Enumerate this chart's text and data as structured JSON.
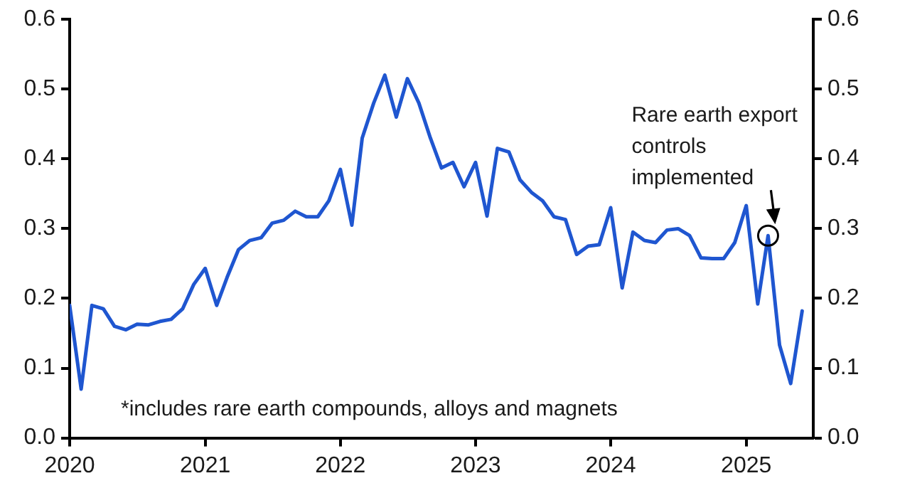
{
  "chart_data": {
    "type": "line",
    "x": [
      "2020-01",
      "2020-02",
      "2020-03",
      "2020-04",
      "2020-05",
      "2020-06",
      "2020-07",
      "2020-08",
      "2020-09",
      "2020-10",
      "2020-11",
      "2020-12",
      "2021-01",
      "2021-02",
      "2021-03",
      "2021-04",
      "2021-05",
      "2021-06",
      "2021-07",
      "2021-08",
      "2021-09",
      "2021-10",
      "2021-11",
      "2021-12",
      "2022-01",
      "2022-02",
      "2022-03",
      "2022-04",
      "2022-05",
      "2022-06",
      "2022-07",
      "2022-08",
      "2022-09",
      "2022-10",
      "2022-11",
      "2022-12",
      "2023-01",
      "2023-02",
      "2023-03",
      "2023-04",
      "2023-05",
      "2023-06",
      "2023-07",
      "2023-08",
      "2023-09",
      "2023-10",
      "2023-11",
      "2023-12",
      "2024-01",
      "2024-02",
      "2024-03",
      "2024-04",
      "2024-05",
      "2024-06",
      "2024-07",
      "2024-08",
      "2024-09",
      "2024-10",
      "2024-11",
      "2024-12",
      "2025-01",
      "2025-02",
      "2025-03",
      "2025-04",
      "2025-05",
      "2025-06"
    ],
    "series": [
      {
        "color": "#1f56d0",
        "values": [
          0.19,
          0.07,
          0.19,
          0.185,
          0.16,
          0.155,
          0.163,
          0.162,
          0.167,
          0.17,
          0.185,
          0.22,
          0.243,
          0.19,
          0.23,
          0.27,
          0.283,
          0.287,
          0.308,
          0.312,
          0.325,
          0.317,
          0.317,
          0.34,
          0.385,
          0.305,
          0.43,
          0.48,
          0.52,
          0.46,
          0.515,
          0.48,
          0.43,
          0.387,
          0.395,
          0.36,
          0.395,
          0.318,
          0.415,
          0.41,
          0.37,
          0.352,
          0.34,
          0.317,
          0.313,
          0.263,
          0.275,
          0.277,
          0.33,
          0.215,
          0.295,
          0.283,
          0.28,
          0.298,
          0.3,
          0.29,
          0.258,
          0.257,
          0.257,
          0.28,
          0.333,
          0.192,
          0.29,
          0.133,
          0.078,
          0.182
        ]
      }
    ],
    "xlim": [
      "2020-01",
      "2025-07"
    ],
    "xticks": [
      "2020",
      "2021",
      "2022",
      "2023",
      "2024",
      "2025"
    ],
    "ylim": [
      0,
      0.6
    ],
    "yticks": [
      {
        "value": 0,
        "label": "0.0"
      },
      {
        "value": 0.1,
        "label": "0.1"
      },
      {
        "value": 0.2,
        "label": "0.2"
      },
      {
        "value": 0.3,
        "label": "0.3"
      },
      {
        "value": 0.4,
        "label": "0.4"
      },
      {
        "value": 0.5,
        "label": "0.5"
      },
      {
        "value": 0.6,
        "label": "0.6"
      }
    ],
    "y2lim": [
      0,
      0.6
    ],
    "y2ticks": [
      {
        "value": 0,
        "label": "0.0"
      },
      {
        "value": 0.1,
        "label": "0.1"
      },
      {
        "value": 0.2,
        "label": "0.2"
      },
      {
        "value": 0.3,
        "label": "0.3"
      },
      {
        "value": 0.4,
        "label": "0.4"
      },
      {
        "value": 0.5,
        "label": "0.5"
      },
      {
        "value": 0.6,
        "label": "0.6"
      }
    ],
    "annotations": [
      {
        "text": "Rare earth export controls implemented",
        "x": "2025-03",
        "y": 0.29
      },
      "*includes rare earth compounds, alloys and magnets"
    ],
    "grid": false,
    "legend": false,
    "marker": "none",
    "line_style": "solid"
  }
}
